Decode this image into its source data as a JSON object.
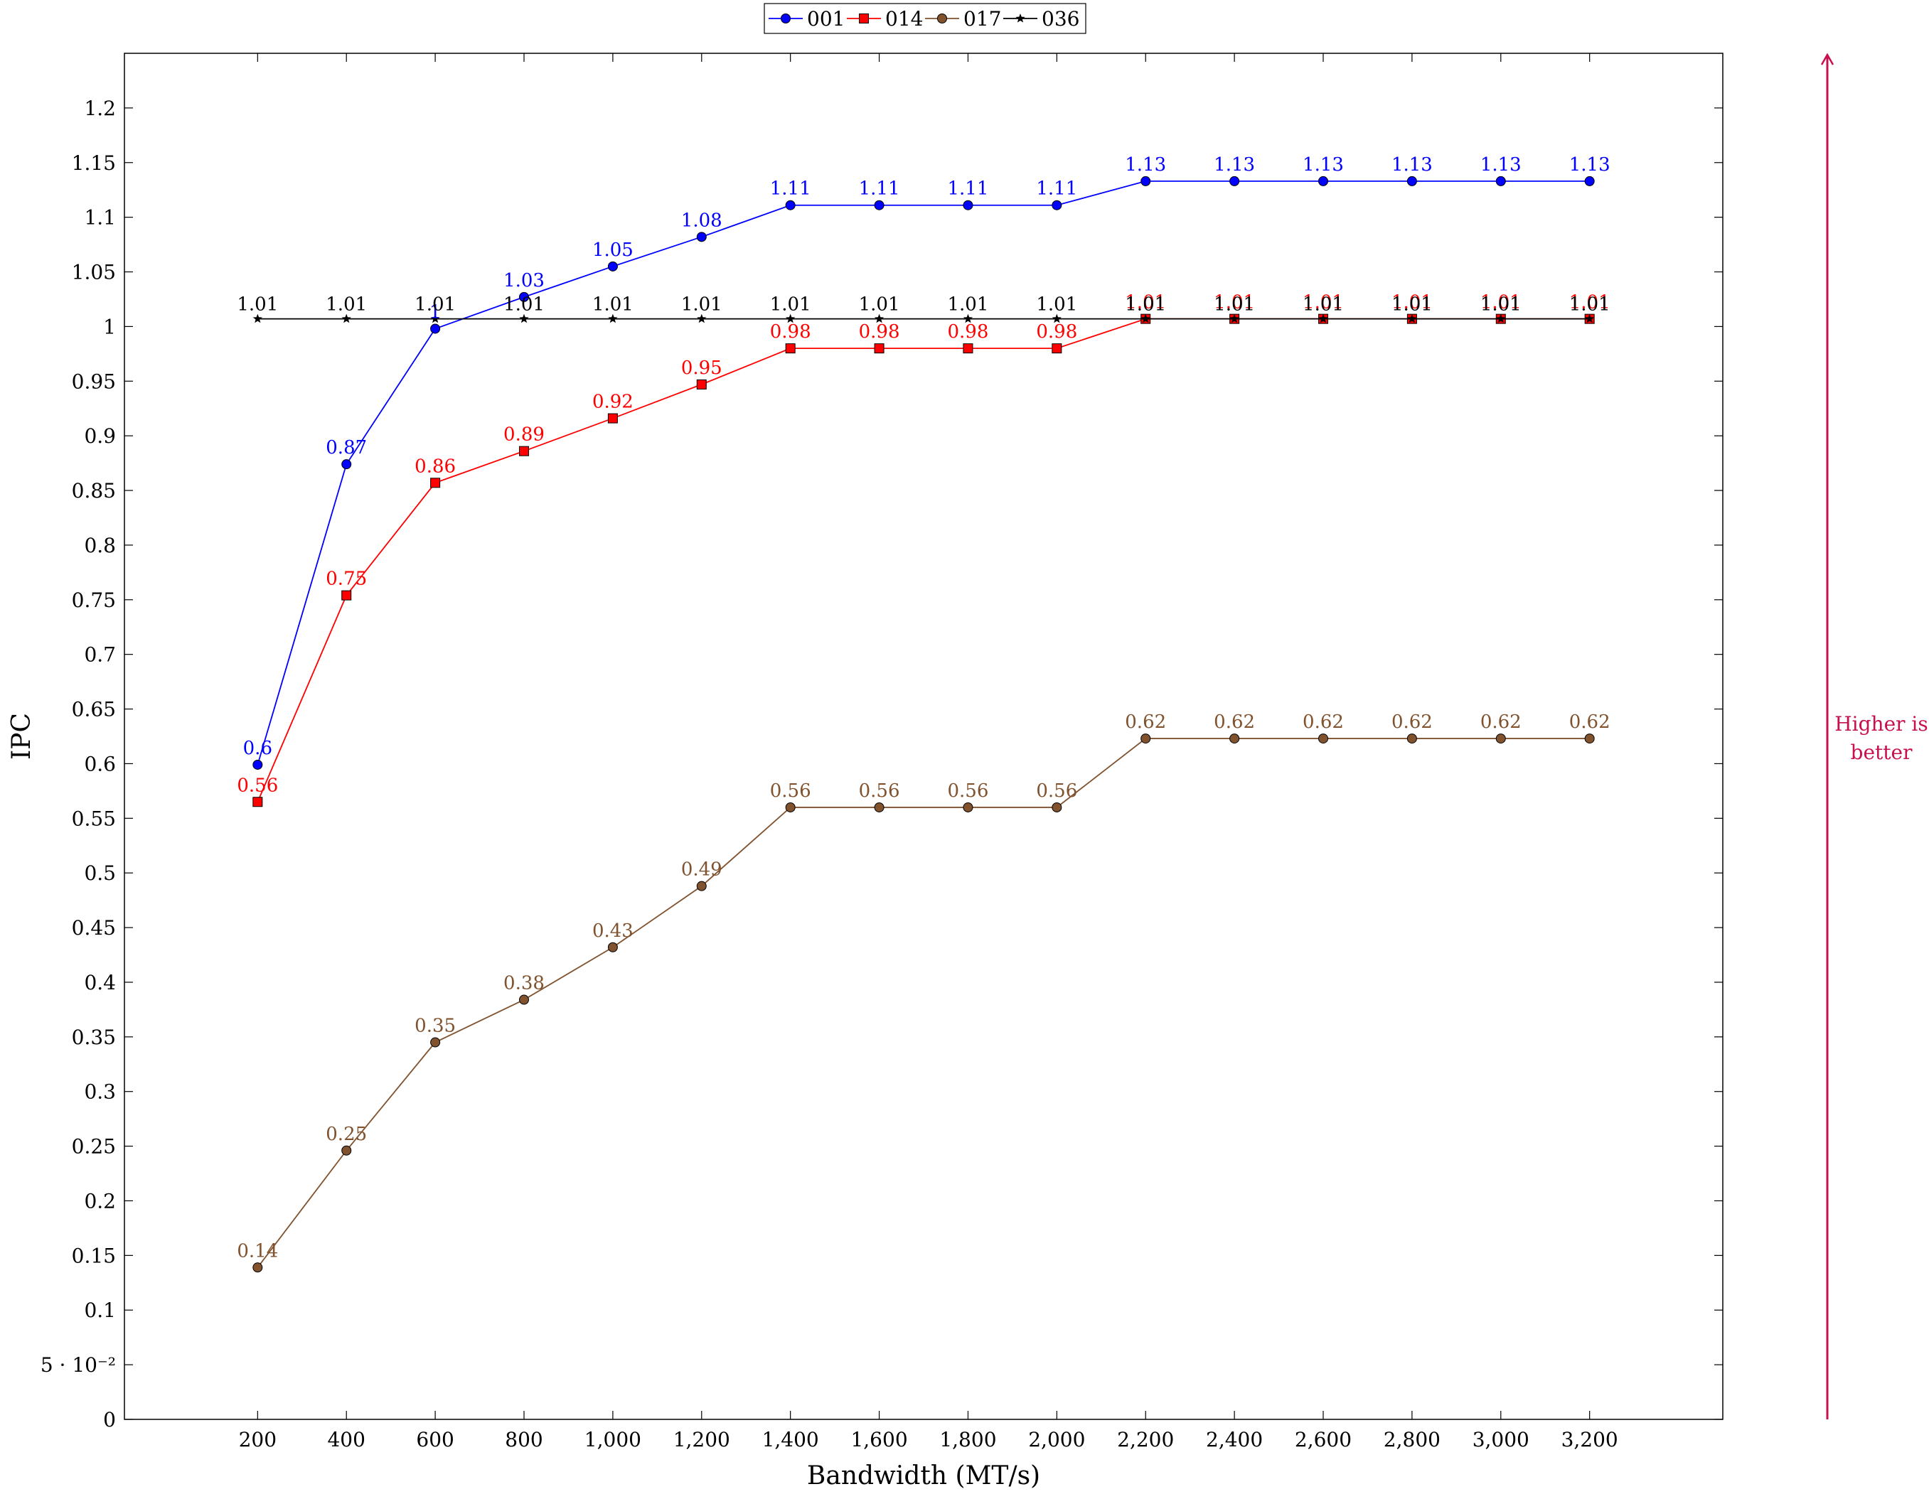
{
  "chart_data": {
    "type": "line",
    "xlabel": "Bandwidth (MT/s)",
    "ylabel": "IPC",
    "x": [
      200,
      400,
      600,
      800,
      1000,
      1200,
      1400,
      1600,
      1800,
      2000,
      2200,
      2400,
      2600,
      2800,
      3000,
      3200
    ],
    "xlim": [
      -100,
      3500
    ],
    "ylim": [
      0,
      1.25
    ],
    "x_tick_labels": [
      "200",
      "400",
      "600",
      "800",
      "1,000",
      "1,200",
      "1,400",
      "1,600",
      "1,800",
      "2,000",
      "2,200",
      "2,400",
      "2,600",
      "2,800",
      "3,000",
      "3,200"
    ],
    "y_ticks": [
      0,
      0.05,
      0.1,
      0.15,
      0.2,
      0.25,
      0.3,
      0.35,
      0.4,
      0.45,
      0.5,
      0.55,
      0.6,
      0.65,
      0.7,
      0.75,
      0.8,
      0.85,
      0.9,
      0.95,
      1,
      1.05,
      1.1,
      1.15,
      1.2
    ],
    "y_tick_labels": [
      "0",
      "5 · 10⁻²",
      "0.1",
      "0.15",
      "0.2",
      "0.25",
      "0.3",
      "0.35",
      "0.4",
      "0.45",
      "0.5",
      "0.55",
      "0.6",
      "0.65",
      "0.7",
      "0.75",
      "0.8",
      "0.85",
      "0.9",
      "0.95",
      "1",
      "1.05",
      "1.1",
      "1.15",
      "1.2"
    ],
    "legend_position": "top-center",
    "grid": false,
    "series": [
      {
        "name": "001",
        "color": "#0000ff",
        "marker": "circle",
        "values": [
          0.599,
          0.874,
          0.998,
          1.027,
          1.055,
          1.082,
          1.111,
          1.111,
          1.111,
          1.111,
          1.133,
          1.133,
          1.133,
          1.133,
          1.133,
          1.133
        ],
        "labels": [
          "0.6",
          "0.87",
          "1",
          "1.03",
          "1.05",
          "1.08",
          "1.11",
          "1.11",
          "1.11",
          "1.11",
          "1.13",
          "1.13",
          "1.13",
          "1.13",
          "1.13",
          "1.13"
        ]
      },
      {
        "name": "014",
        "color": "#ff0000",
        "marker": "square",
        "values": [
          0.565,
          0.754,
          0.857,
          0.886,
          0.916,
          0.947,
          0.98,
          0.98,
          0.98,
          0.98,
          1.007,
          1.007,
          1.007,
          1.007,
          1.007,
          1.007
        ],
        "labels": [
          "0.56",
          "0.75",
          "0.86",
          "0.89",
          "0.92",
          "0.95",
          "0.98",
          "0.98",
          "0.98",
          "0.98",
          "1.01",
          "1.01",
          "1.01",
          "1.01",
          "1.01",
          "1.01"
        ]
      },
      {
        "name": "017",
        "color": "#80522e",
        "marker": "circle",
        "values": [
          0.139,
          0.246,
          0.345,
          0.384,
          0.432,
          0.488,
          0.56,
          0.56,
          0.56,
          0.56,
          0.623,
          0.623,
          0.623,
          0.623,
          0.623,
          0.623
        ],
        "labels": [
          "0.14",
          "0.25",
          "0.35",
          "0.38",
          "0.43",
          "0.49",
          "0.56",
          "0.56",
          "0.56",
          "0.56",
          "0.62",
          "0.62",
          "0.62",
          "0.62",
          "0.62",
          "0.62"
        ]
      },
      {
        "name": "036",
        "color": "#000000",
        "marker": "star",
        "values": [
          1.007,
          1.007,
          1.007,
          1.007,
          1.007,
          1.007,
          1.007,
          1.007,
          1.007,
          1.007,
          1.007,
          1.007,
          1.007,
          1.007,
          1.007,
          1.007
        ],
        "labels": [
          "1.01",
          "1.01",
          "1.01",
          "1.01",
          "1.01",
          "1.01",
          "1.01",
          "1.01",
          "1.01",
          "1.01",
          "1.01",
          "1.01",
          "1.01",
          "1.01",
          "1.01",
          "1.01"
        ]
      }
    ],
    "annotation": {
      "text_lines": [
        "Higher is",
        "better"
      ],
      "color": "#c8104f",
      "direction": "up"
    }
  }
}
